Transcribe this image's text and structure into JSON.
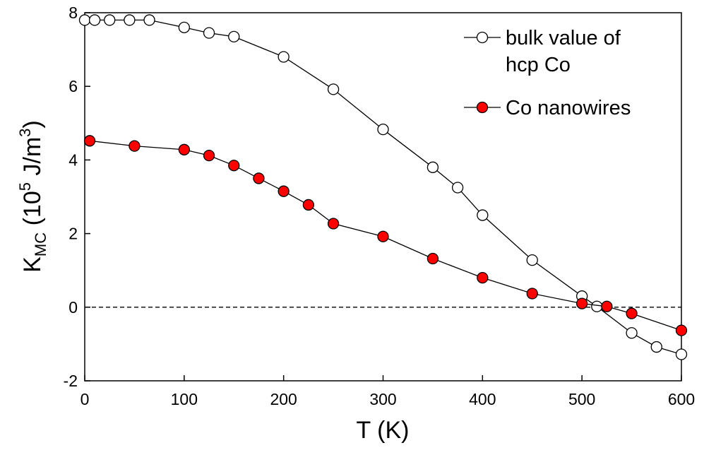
{
  "chart_data": {
    "type": "line",
    "xlabel": "T (K)",
    "ylabel": {
      "main": "K",
      "subscript": "MC",
      "unit_prefix": " (10",
      "unit_exp": "5",
      "unit_middle": " J/m",
      "unit_exp2": "3",
      "unit_suffix": ")"
    },
    "xlim": [
      0,
      600
    ],
    "ylim": [
      -2,
      8
    ],
    "xticks": [
      "0",
      "100",
      "200",
      "300",
      "400",
      "500",
      "600"
    ],
    "yticks": [
      "-2",
      "0",
      "2",
      "4",
      "6",
      "8"
    ],
    "grid": false,
    "legend_position": "top-right",
    "reference_line": {
      "y": 0,
      "style": "dashed"
    },
    "series": [
      {
        "name": "bulk value of hcp Co",
        "legend_lines": [
          "bulk value of",
          "hcp Co"
        ],
        "marker_fill": "#ffffff",
        "x": [
          0,
          10,
          25,
          45,
          65,
          100,
          125,
          150,
          200,
          250,
          300,
          350,
          375,
          400,
          450,
          500,
          515,
          550,
          575,
          600
        ],
        "y": [
          7.8,
          7.8,
          7.8,
          7.8,
          7.8,
          7.6,
          7.45,
          7.35,
          6.8,
          5.92,
          4.83,
          3.8,
          3.25,
          2.5,
          1.28,
          0.3,
          0.02,
          -0.7,
          -1.08,
          -1.28
        ]
      },
      {
        "name": "Co nanowires",
        "legend_lines": [
          "Co nanowires"
        ],
        "marker_fill": "#ff0000",
        "x": [
          5,
          50,
          100,
          125,
          150,
          175,
          200,
          225,
          250,
          300,
          350,
          400,
          450,
          500,
          525,
          550,
          600
        ],
        "y": [
          4.52,
          4.38,
          4.28,
          4.12,
          3.85,
          3.5,
          3.15,
          2.78,
          2.27,
          1.92,
          1.32,
          0.8,
          0.37,
          0.1,
          0.02,
          -0.17,
          -0.63
        ]
      }
    ]
  }
}
